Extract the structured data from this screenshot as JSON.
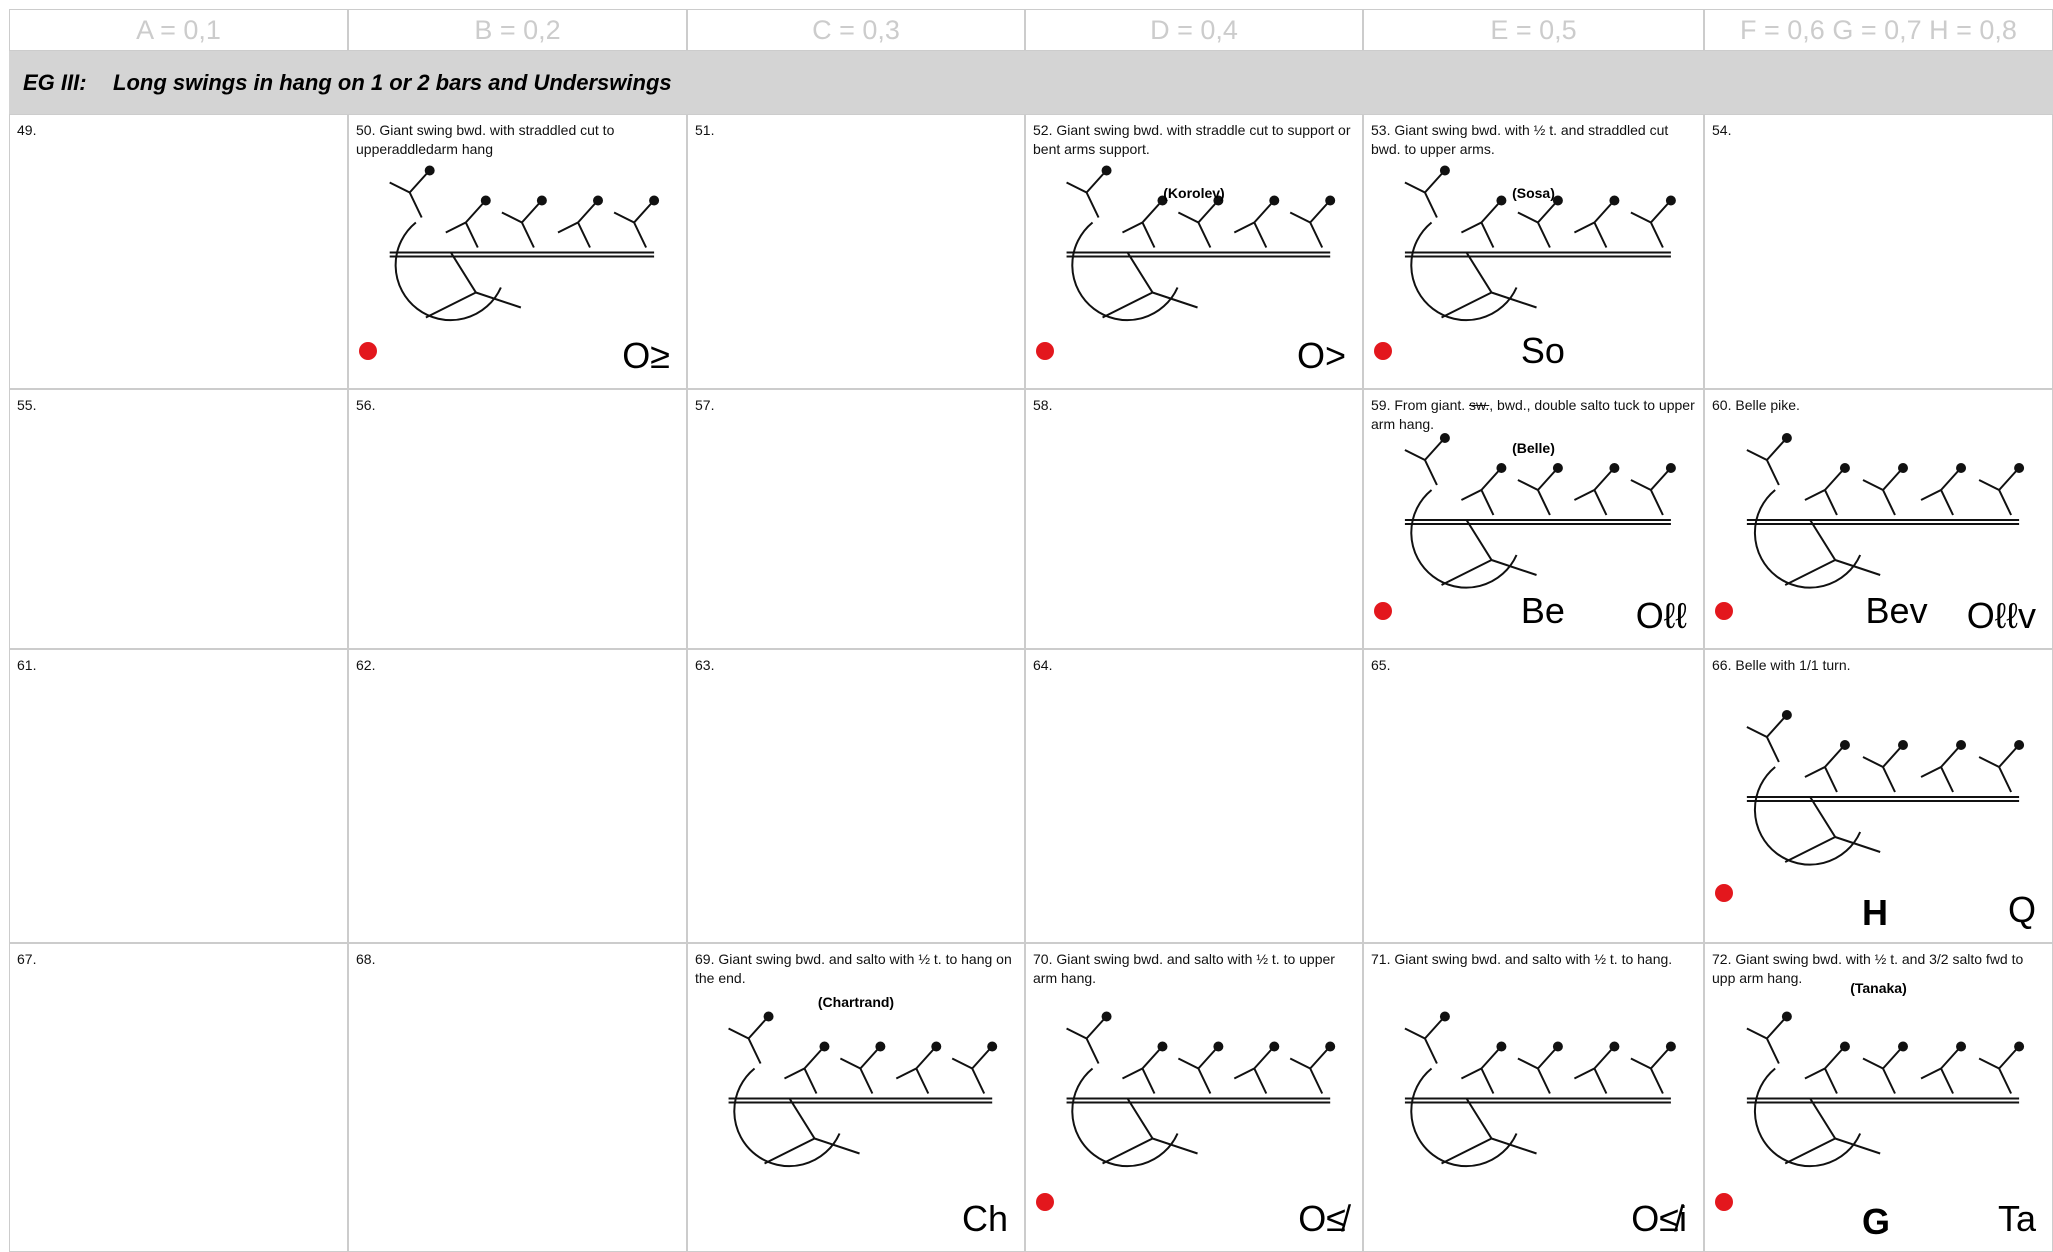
{
  "header": {
    "columns": [
      "A = 0,1",
      "B = 0,2",
      "C = 0,3",
      "D = 0,4",
      "E = 0,5",
      "F = 0,6 G = 0,7 H = 0,8"
    ]
  },
  "section": {
    "code": "EG III:",
    "title": "Long swings in hang on 1 or 2 bars and Underswings"
  },
  "rows": [
    [
      {
        "text": "49."
      },
      {
        "text": "50. Giant swing bwd. with straddled cut to upperaddledarm hang",
        "symbol": "O≥",
        "dot": true,
        "figure": true
      },
      {
        "text": "51."
      },
      {
        "text": "52. Giant swing bwd. with straddle cut to support or bent arms support.",
        "name": "(Korolev)",
        "symbol": "O>",
        "dot": true,
        "figure": true
      },
      {
        "text": "53. Giant swing bwd. with ½ t. and straddled cut bwd. to  upper arms.",
        "name": "(Sosa)",
        "code": "So",
        "dot": true,
        "figure": true
      },
      {
        "text": "54."
      }
    ],
    [
      {
        "text": "55."
      },
      {
        "text": "56."
      },
      {
        "text": "57."
      },
      {
        "text": "58."
      },
      {
        "text": [
          "59. From giant. ",
          "sw.",
          ", bwd., double salto tuck to upper arm hang."
        ],
        "strike": 1,
        "name": "(Belle)",
        "code": "Be",
        "symbol": "Oℓℓ",
        "dot": true,
        "figure": true
      },
      {
        "text": "60. Belle pike.",
        "code": "Bev",
        "symbol": "Oℓℓv",
        "dot": true,
        "figure": true
      }
    ],
    [
      {
        "text": "61."
      },
      {
        "text": "62."
      },
      {
        "text": "63."
      },
      {
        "text": "64."
      },
      {
        "text": "65."
      },
      {
        "text": "66. Belle with 1/1 turn.",
        "value": "H",
        "symbol": "Q",
        "dot": true,
        "figure": true
      }
    ],
    [
      {
        "text": "67."
      },
      {
        "text": "68."
      },
      {
        "text": "69. Giant swing bwd. and salto with ½ t. to hang on the end.",
        "name": "(Chartrand)",
        "symbol": "Ch",
        "figure": true
      },
      {
        "text": "70. Giant swing bwd. and salto with ½ t. to upper arm  hang.",
        "symbol": "O≰",
        "dot": true,
        "figure": true
      },
      {
        "text": "71. Giant swing bwd. and salto with ½ t. to hang.",
        "symbol": "O≰i",
        "figure": true
      },
      {
        "text": "72. Giant swing bwd. with ½ t. and 3/2 salto fwd to upp arm hang.",
        "name": "(Tanaka)",
        "value": "G",
        "symbol": "Ta",
        "dot": true,
        "figure": true
      }
    ]
  ]
}
